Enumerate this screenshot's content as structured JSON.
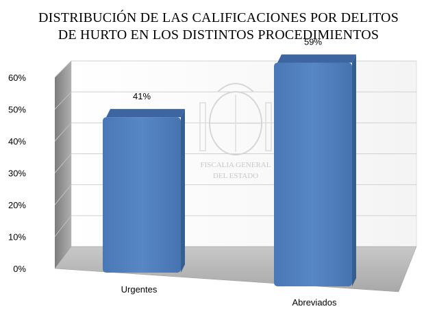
{
  "chart_data": {
    "type": "bar",
    "title_lines": [
      "DISTRIBUCIÓN DE LAS CALIFICACIONES POR DELITOS",
      "DE HURTO EN LOS DISTINTOS PROCEDIMIENTOS"
    ],
    "categories": [
      "Urgentes",
      "Abreviados"
    ],
    "values": [
      41,
      59
    ],
    "data_labels": [
      "41%",
      "59%"
    ],
    "ylim": [
      0,
      60
    ],
    "yticks": [
      0,
      10,
      20,
      30,
      40,
      50,
      60
    ],
    "ytick_labels": [
      "0%",
      "10%",
      "20%",
      "30%",
      "40%",
      "50%",
      "60%"
    ],
    "grid": true,
    "three_d": true,
    "bar_color": "#4F81BD",
    "legend": "none"
  },
  "watermark": {
    "lines": [
      "FISCALIA GENERAL",
      "DEL ESTADO"
    ]
  }
}
